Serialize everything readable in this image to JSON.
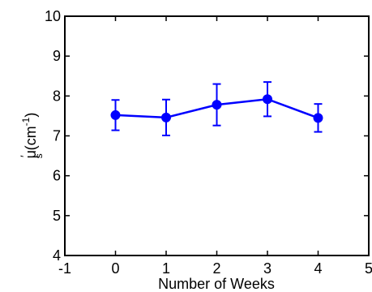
{
  "chart_data": {
    "type": "line",
    "title": "",
    "xlabel": "Number of Weeks",
    "ylabel_main": "μ",
    "ylabel_prime": "′",
    "ylabel_sub": "s",
    "ylabel_unit_open": "(cm",
    "ylabel_unit_sup": "-1",
    "ylabel_unit_close": ")",
    "xlim": [
      -1,
      5
    ],
    "ylim": [
      4,
      10
    ],
    "xticks": [
      -1,
      0,
      1,
      2,
      3,
      4,
      5
    ],
    "yticks": [
      4,
      5,
      6,
      7,
      8,
      9,
      10
    ],
    "grid": false,
    "x": [
      0,
      1,
      2,
      3,
      4
    ],
    "series": [
      {
        "values": [
          7.52,
          7.46,
          7.78,
          7.92,
          7.45
        ],
        "error": [
          0.38,
          0.45,
          0.52,
          0.43,
          0.35
        ],
        "color": "#0000ff"
      }
    ]
  }
}
